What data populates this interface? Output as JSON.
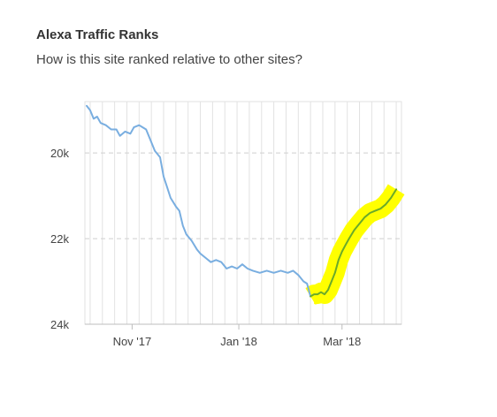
{
  "header": {
    "title": "Alexa Traffic Ranks",
    "subtitle": "How is this site ranked relative to other sites?"
  },
  "colors": {
    "rank_line": "#79aee0",
    "trend_line": "#6aaa2a",
    "trend_band": "#ffff00",
    "grid": "#e2e2e2",
    "axis": "#bdbdbd"
  },
  "chart_data": {
    "type": "line",
    "title": "",
    "xlabel": "",
    "ylabel": "",
    "y_inverted": true,
    "ylim": [
      18800,
      24000
    ],
    "xlim": [
      "2017-10-05",
      "2018-04-04"
    ],
    "x_ticks": [
      {
        "label": "Nov '17",
        "date": "2017-11-01"
      },
      {
        "label": "Jan '18",
        "date": "2018-01-01"
      },
      {
        "label": "Mar '18",
        "date": "2018-03-01"
      }
    ],
    "y_ticks": [
      {
        "label": "20k",
        "value": 20000
      },
      {
        "label": "22k",
        "value": 22000
      },
      {
        "label": "24k",
        "value": 24000
      }
    ],
    "grid": {
      "vertical": true,
      "horizontal": "dashed"
    },
    "series": [
      {
        "role": "rank",
        "points": [
          [
            "2017-10-06",
            18900
          ],
          [
            "2017-10-08",
            19000
          ],
          [
            "2017-10-10",
            19200
          ],
          [
            "2017-10-12",
            19150
          ],
          [
            "2017-10-14",
            19300
          ],
          [
            "2017-10-17",
            19350
          ],
          [
            "2017-10-20",
            19450
          ],
          [
            "2017-10-23",
            19450
          ],
          [
            "2017-10-25",
            19600
          ],
          [
            "2017-10-28",
            19500
          ],
          [
            "2017-10-31",
            19550
          ],
          [
            "2017-11-02",
            19400
          ],
          [
            "2017-11-05",
            19350
          ],
          [
            "2017-11-07",
            19400
          ],
          [
            "2017-11-09",
            19450
          ],
          [
            "2017-11-11",
            19650
          ],
          [
            "2017-11-14",
            19950
          ],
          [
            "2017-11-17",
            20100
          ],
          [
            "2017-11-19",
            20550
          ],
          [
            "2017-11-21",
            20800
          ],
          [
            "2017-11-23",
            21050
          ],
          [
            "2017-11-26",
            21250
          ],
          [
            "2017-11-28",
            21350
          ],
          [
            "2017-11-30",
            21700
          ],
          [
            "2017-12-02",
            21900
          ],
          [
            "2017-12-05",
            22050
          ],
          [
            "2017-12-08",
            22250
          ],
          [
            "2017-12-10",
            22350
          ],
          [
            "2017-12-13",
            22450
          ],
          [
            "2017-12-16",
            22550
          ],
          [
            "2017-12-19",
            22500
          ],
          [
            "2017-12-22",
            22550
          ],
          [
            "2017-12-25",
            22700
          ],
          [
            "2017-12-28",
            22650
          ],
          [
            "2017-12-31",
            22700
          ],
          [
            "2018-01-03",
            22600
          ],
          [
            "2018-01-06",
            22700
          ],
          [
            "2018-01-09",
            22750
          ],
          [
            "2018-01-13",
            22800
          ],
          [
            "2018-01-17",
            22750
          ],
          [
            "2018-01-21",
            22800
          ],
          [
            "2018-01-25",
            22750
          ],
          [
            "2018-01-29",
            22800
          ],
          [
            "2018-02-01",
            22750
          ],
          [
            "2018-02-04",
            22850
          ],
          [
            "2018-02-07",
            23000
          ],
          [
            "2018-02-09",
            23050
          ],
          [
            "2018-02-11",
            23350
          ]
        ]
      },
      {
        "role": "trend",
        "points": [
          [
            "2018-02-11",
            23350
          ],
          [
            "2018-02-13",
            23300
          ],
          [
            "2018-02-15",
            23300
          ],
          [
            "2018-02-17",
            23250
          ],
          [
            "2018-02-19",
            23300
          ],
          [
            "2018-02-21",
            23200
          ],
          [
            "2018-02-23",
            23000
          ],
          [
            "2018-02-25",
            22800
          ],
          [
            "2018-02-27",
            22500
          ],
          [
            "2018-03-01",
            22300
          ],
          [
            "2018-03-03",
            22150
          ],
          [
            "2018-03-05",
            22000
          ],
          [
            "2018-03-08",
            21800
          ],
          [
            "2018-03-11",
            21650
          ],
          [
            "2018-03-14",
            21500
          ],
          [
            "2018-03-17",
            21400
          ],
          [
            "2018-03-20",
            21350
          ],
          [
            "2018-03-23",
            21300
          ],
          [
            "2018-03-26",
            21200
          ],
          [
            "2018-03-29",
            21050
          ],
          [
            "2018-04-01",
            20850
          ]
        ]
      }
    ]
  }
}
